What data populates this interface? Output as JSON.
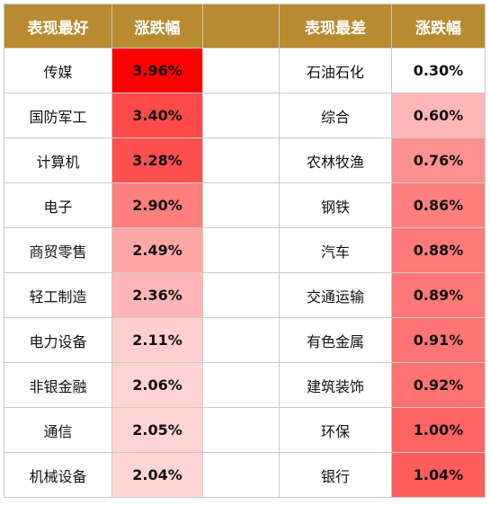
{
  "header": {
    "best_label": "表现最好",
    "best_change_label": "涨跌幅",
    "worst_label": "表现最差",
    "worst_change_label": "涨跌幅"
  },
  "colors": {
    "header_bg": "#b98b30",
    "header_text": "#ffffff",
    "heat_max": "#ff0000",
    "heat_min": "#ffffff"
  },
  "best": [
    {
      "name": "传媒",
      "change": "3.96%",
      "color": "#ff0000"
    },
    {
      "name": "国防军工",
      "change": "3.40%",
      "color": "#ff4a4a"
    },
    {
      "name": "计算机",
      "change": "3.28%",
      "color": "#ff5050"
    },
    {
      "name": "电子",
      "change": "2.90%",
      "color": "#ff7e7e"
    },
    {
      "name": "商贸零售",
      "change": "2.49%",
      "color": "#ffa7a7"
    },
    {
      "name": "轻工制造",
      "change": "2.36%",
      "color": "#ffb5b5"
    },
    {
      "name": "电力设备",
      "change": "2.11%",
      "color": "#ffcfcf"
    },
    {
      "name": "非银金融",
      "change": "2.06%",
      "color": "#ffd3d3"
    },
    {
      "name": "通信",
      "change": "2.05%",
      "color": "#ffd4d4"
    },
    {
      "name": "机械设备",
      "change": "2.04%",
      "color": "#ffd5d5"
    }
  ],
  "worst": [
    {
      "name": "石油石化",
      "change": "0.30%",
      "color": "#ffffff"
    },
    {
      "name": "综合",
      "change": "0.60%",
      "color": "#ffb6b6"
    },
    {
      "name": "农林牧渔",
      "change": "0.76%",
      "color": "#ff9191"
    },
    {
      "name": "钢铁",
      "change": "0.86%",
      "color": "#ff7f7f"
    },
    {
      "name": "汽车",
      "change": "0.88%",
      "color": "#ff7a7a"
    },
    {
      "name": "交通运输",
      "change": "0.89%",
      "color": "#ff7878"
    },
    {
      "name": "有色金属",
      "change": "0.91%",
      "color": "#ff7474"
    },
    {
      "name": "建筑装饰",
      "change": "0.92%",
      "color": "#ff7272"
    },
    {
      "name": "环保",
      "change": "1.00%",
      "color": "#ff6464"
    },
    {
      "name": "银行",
      "change": "1.04%",
      "color": "#ff5c5c"
    }
  ]
}
